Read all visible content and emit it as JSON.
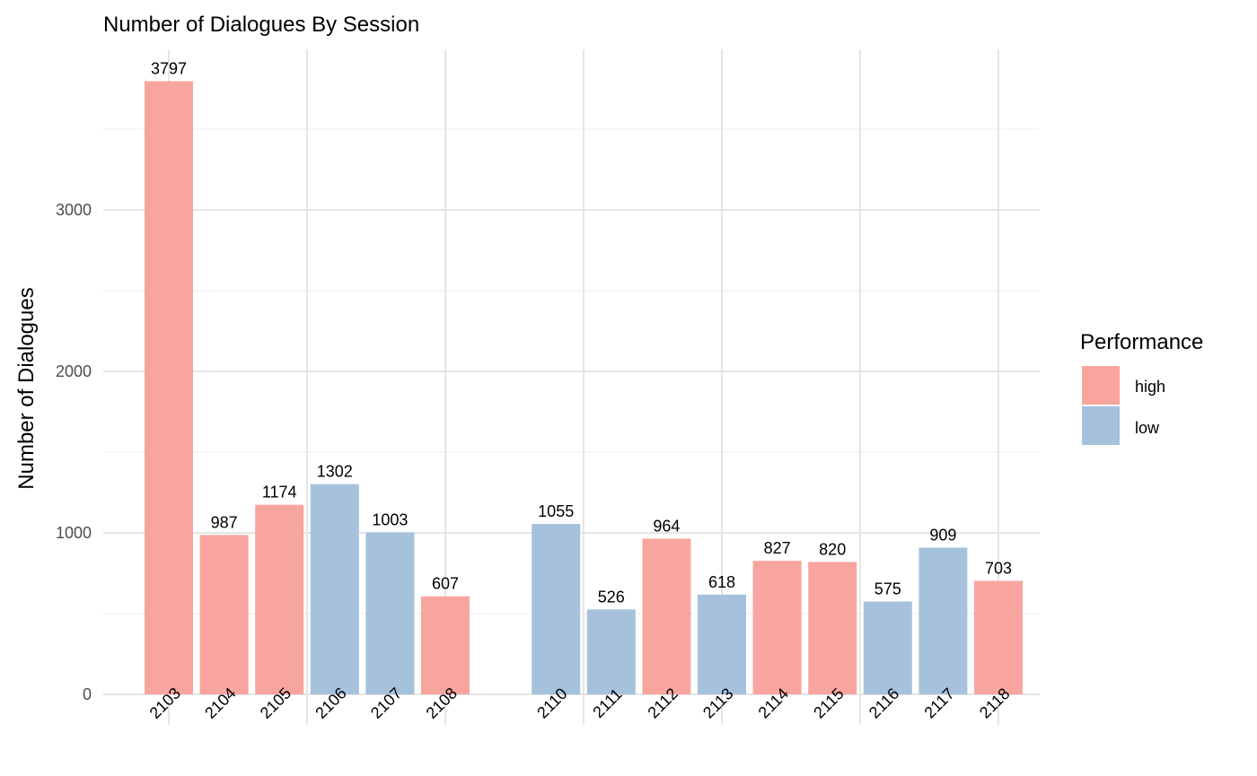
{
  "chart_data": {
    "type": "bar",
    "title": "Number of Dialogues By Session",
    "xlabel": "",
    "ylabel": "Number of Dialogues",
    "ylim": [
      0,
      3797
    ],
    "y_ticks": [
      0,
      1000,
      2000,
      3000
    ],
    "grid": true,
    "legend": {
      "title": "Performance",
      "position": "right",
      "entries": [
        {
          "label": "high",
          "color": "#F8A59F"
        },
        {
          "label": "low",
          "color": "#A6C1DC"
        }
      ]
    },
    "categories": [
      "2103",
      "2104",
      "2105",
      "2106",
      "2107",
      "2108",
      "2110",
      "2111",
      "2112",
      "2113",
      "2114",
      "2115",
      "2116",
      "2117",
      "2118"
    ],
    "values": [
      3797,
      987,
      1174,
      1302,
      1003,
      607,
      1055,
      526,
      964,
      618,
      827,
      820,
      575,
      909,
      703
    ],
    "performance": [
      "high",
      "high",
      "high",
      "low",
      "low",
      "high",
      "low",
      "low",
      "high",
      "low",
      "high",
      "high",
      "low",
      "low",
      "high"
    ],
    "x_positions": [
      2103,
      2104,
      2105,
      2106,
      2107,
      2108,
      2110,
      2111,
      2112,
      2113,
      2114,
      2115,
      2116,
      2117,
      2118
    ],
    "xlim": [
      2102,
      2119
    ]
  }
}
